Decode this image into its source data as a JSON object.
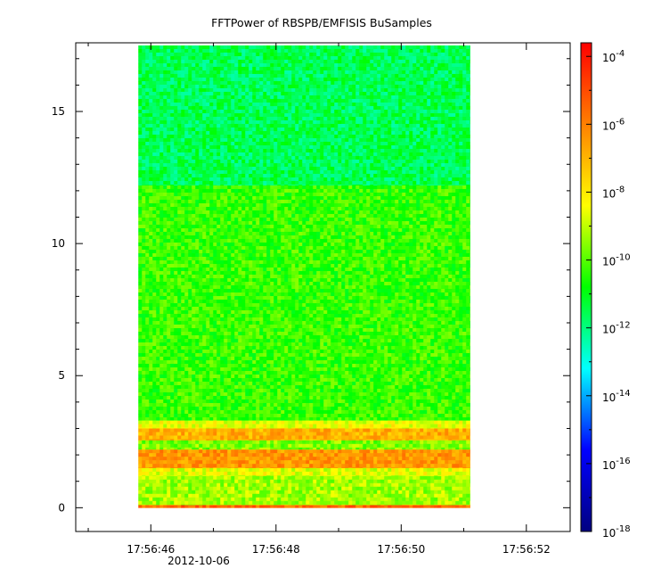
{
  "chart_data": {
    "type": "heatmap",
    "title": "FFTPower of RBSPB/EMFISIS  BuSamples",
    "xlabel": "",
    "ylabel": "",
    "x_axis": {
      "ticks": [
        {
          "time": "17:56:46",
          "seconds": 46
        },
        {
          "time": "17:56:48",
          "seconds": 48
        },
        {
          "time": "17:56:50",
          "seconds": 50
        },
        {
          "time": "17:56:52",
          "seconds": 52
        }
      ],
      "minor_step_seconds": 1,
      "range_seconds": [
        44.8,
        52.7
      ],
      "date_label": "2012-10-06"
    },
    "y_axis": {
      "ticks": [
        0,
        5,
        10,
        15
      ],
      "range": [
        -0.9,
        17.6
      ]
    },
    "data_extent": {
      "x_seconds": [
        45.8,
        51.1
      ],
      "y": [
        0,
        17.5
      ]
    },
    "colorbar": {
      "scale": "log",
      "range_exponents": [
        -18,
        -3.6
      ],
      "tick_exponents": [
        -18,
        -16,
        -14,
        -12,
        -10,
        -8,
        -6,
        -4
      ],
      "tick_labels": [
        "10",
        "10",
        "10",
        "10",
        "10",
        "10",
        "10",
        "10"
      ],
      "tick_superscripts": [
        "-18",
        "-16",
        "-14",
        "-12",
        "-10",
        "-8",
        "-6",
        "-4"
      ],
      "colors": [
        "#000080",
        "#0000ff",
        "#00ffff",
        "#00ff00",
        "#ffff00",
        "#ff8000",
        "#ff0000"
      ]
    },
    "bands": [
      {
        "y_from": 12.2,
        "y_to": 17.5,
        "level_exponent": -11.6
      },
      {
        "y_from": 3.3,
        "y_to": 12.2,
        "level_exponent": -10.3
      },
      {
        "y_from": 3.0,
        "y_to": 3.3,
        "level_exponent": -8.5
      },
      {
        "y_from": 2.55,
        "y_to": 3.0,
        "level_exponent": -6.9
      },
      {
        "y_from": 2.2,
        "y_to": 2.55,
        "level_exponent": -9.6
      },
      {
        "y_from": 1.5,
        "y_to": 2.2,
        "level_exponent": -6.4
      },
      {
        "y_from": 1.2,
        "y_to": 1.5,
        "level_exponent": -8.6
      },
      {
        "y_from": 0.1,
        "y_to": 1.2,
        "level_exponent": -9.3
      },
      {
        "y_from": 0.0,
        "y_to": 0.1,
        "level_exponent": -5.5
      }
    ]
  }
}
